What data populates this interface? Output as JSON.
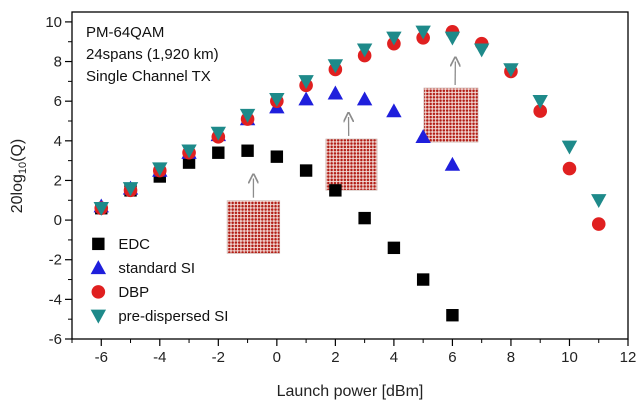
{
  "chart_data": {
    "type": "scatter",
    "xlabel": "Launch power [dBm]",
    "ylabel_parts": {
      "base": "20log",
      "sub": "10",
      "rest": "(Q)"
    },
    "xlim": [
      -7,
      12
    ],
    "ylim": [
      -6,
      10.5
    ],
    "xticks": [
      -6,
      -4,
      -2,
      0,
      2,
      4,
      6,
      8,
      10,
      12
    ],
    "yticks": [
      -6,
      -4,
      -2,
      0,
      2,
      4,
      6,
      8,
      10
    ],
    "annotations": [
      "PM-64QAM",
      "24spans (1,920 km)",
      "Single Channel TX"
    ],
    "legend_position": "bottom-left",
    "series": [
      {
        "name": "EDC",
        "marker": "square",
        "color": "#000000",
        "x": [
          -6,
          -5,
          -4,
          -3,
          -2,
          -1,
          0,
          1,
          2,
          3,
          4,
          5,
          6
        ],
        "y": [
          0.6,
          1.5,
          2.2,
          2.9,
          3.4,
          3.5,
          3.2,
          2.5,
          1.5,
          0.1,
          -1.4,
          -3.0,
          -4.8
        ]
      },
      {
        "name": "standard SI",
        "marker": "triangle-up",
        "color": "#1f1fdc",
        "x": [
          -6,
          -5,
          -4,
          -3,
          -2,
          -1,
          0,
          1,
          2,
          3,
          4,
          5,
          6
        ],
        "y": [
          0.7,
          1.6,
          2.5,
          3.4,
          4.3,
          5.1,
          5.7,
          6.1,
          6.4,
          6.1,
          5.5,
          4.2,
          2.8
        ]
      },
      {
        "name": "DBP",
        "marker": "circle",
        "color": "#e02020",
        "x": [
          -6,
          -5,
          -4,
          -3,
          -2,
          -1,
          0,
          1,
          2,
          3,
          4,
          5,
          6,
          7,
          8,
          9,
          10,
          11
        ],
        "y": [
          0.6,
          1.5,
          2.5,
          3.4,
          4.2,
          5.1,
          6.0,
          6.8,
          7.6,
          8.3,
          8.9,
          9.2,
          9.5,
          8.9,
          7.5,
          5.5,
          2.6,
          -0.2
        ]
      },
      {
        "name": "pre-dispersed SI",
        "marker": "triangle-down",
        "color": "#1e8a8a",
        "x": [
          -6,
          -5,
          -4,
          -3,
          -2,
          -1,
          0,
          1,
          2,
          3,
          4,
          5,
          6,
          7,
          8,
          9,
          10,
          11
        ],
        "y": [
          0.6,
          1.6,
          2.6,
          3.5,
          4.4,
          5.3,
          6.1,
          7.0,
          7.8,
          8.6,
          9.2,
          9.5,
          9.2,
          8.6,
          7.6,
          6.0,
          3.7,
          1.0
        ]
      }
    ],
    "constellations": [
      {
        "name": "constellation-edc",
        "cx": -0.8,
        "cy": -0.35,
        "size": 1.8,
        "arrow_to_x": -0.8,
        "arrow_to_y": 2.1
      },
      {
        "name": "constellation-standard-si",
        "cx": 2.55,
        "cy": 2.8,
        "size": 1.75,
        "arrow_to_x": 2.45,
        "arrow_to_y": 5.2
      },
      {
        "name": "constellation-dbp",
        "cx": 5.95,
        "cy": 5.3,
        "size": 1.85,
        "arrow_to_x": 6.1,
        "arrow_to_y": 8.0
      }
    ]
  }
}
